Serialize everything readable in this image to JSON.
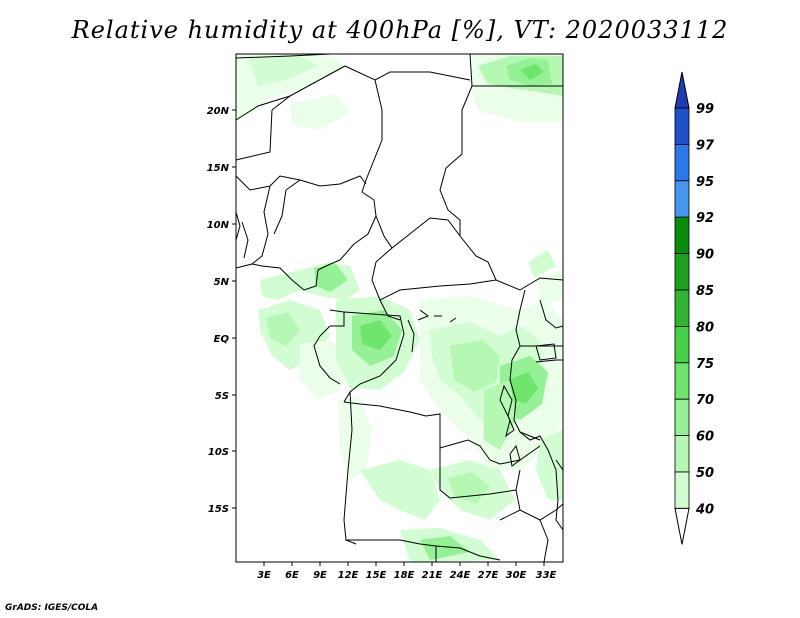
{
  "title": "Relative humidity at 400hPa [%], VT: 2020033112",
  "credit": "GrADS: IGES/COLA",
  "map": {
    "lat_labels": [
      "20N",
      "15N",
      "10N",
      "5N",
      "EQ",
      "5S",
      "10S",
      "15S"
    ],
    "lon_labels": [
      "3E",
      "6E",
      "9E",
      "12E",
      "15E",
      "18E",
      "21E",
      "24E",
      "27E",
      "30E",
      "33E"
    ],
    "lon_range": [
      0.0,
      35.0
    ],
    "lat_range": [
      -20.0,
      24.5
    ]
  },
  "colorbar": {
    "labels": [
      "99",
      "97",
      "95",
      "92",
      "90",
      "85",
      "80",
      "75",
      "70",
      "60",
      "50",
      "40"
    ],
    "colors": [
      "#1e50c8",
      "#2d78e8",
      "#4696f0",
      "#0a8c0a",
      "#1ea01e",
      "#32b432",
      "#46d246",
      "#6ee66e",
      "#96f096",
      "#b4f8b4",
      "#d2fcd2",
      "#eafeea"
    ],
    "arrow_colors": {
      "top": "#1e3cb4",
      "bottom": "#ffffff"
    }
  }
}
